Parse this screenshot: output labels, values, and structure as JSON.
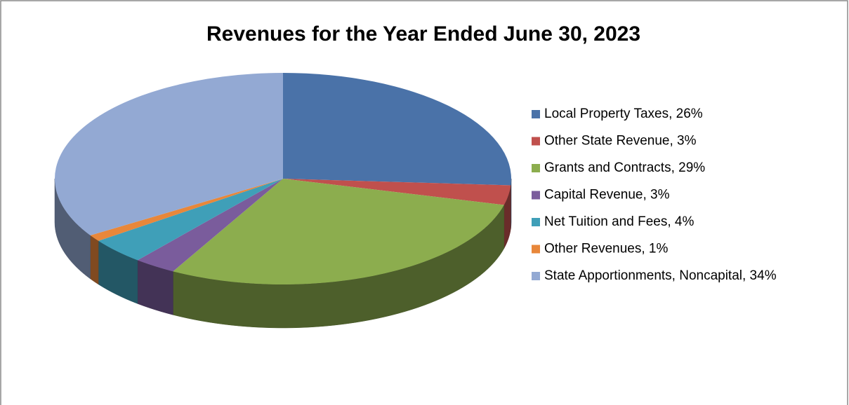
{
  "chart_data": {
    "type": "pie",
    "title": "Revenues for the Year Ended June 30, 2023",
    "categories": [
      "Local Property Taxes, 26%",
      "Other State Revenue, 3%",
      "Grants and Contracts, 29%",
      "Capital Revenue, 3%",
      "Net Tuition and Fees, 4%",
      "Other Revenues, 1%",
      "State Apportionments, Noncapital, 34%"
    ],
    "values": [
      26,
      3,
      29,
      3,
      4,
      1,
      34
    ],
    "colors": [
      "#4a72a8",
      "#c0504d",
      "#8cad4e",
      "#7a5c9c",
      "#3f9fb8",
      "#e8873a",
      "#93a9d3"
    ],
    "legend": "right"
  }
}
